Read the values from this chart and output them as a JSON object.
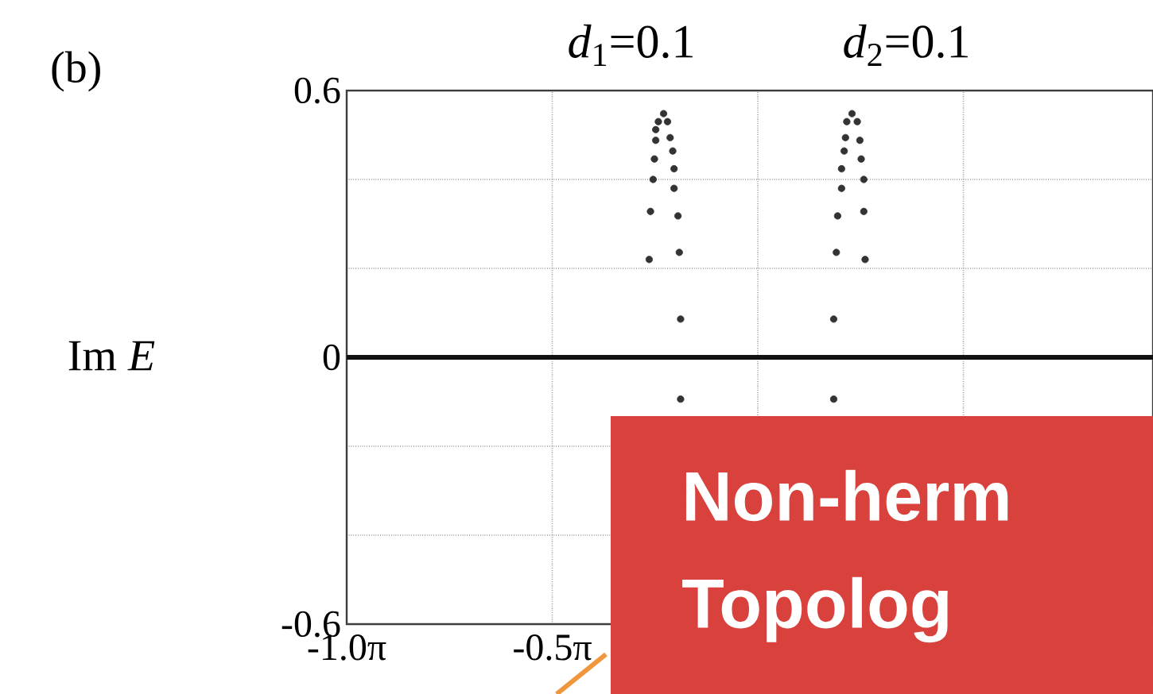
{
  "chart_data": {
    "type": "scatter",
    "title": "(b)",
    "ylabel": "Im *E*",
    "annotations": [
      "*d*$_{1}$=0.1",
      "*d*$_{2}$=0.1",
      "Non-herm",
      "Topolog"
    ],
    "series": [
      {
        "color": "#333333",
        "x": [
          -0.72,
          -0.76,
          -0.78,
          -0.78,
          -0.79,
          -0.8,
          -0.82,
          -0.83,
          -0.69,
          -0.67,
          -0.65,
          -0.64,
          -0.64,
          -0.61,
          -0.6,
          -0.59,
          -0.59,
          0.72,
          0.68,
          0.67,
          0.66,
          0.64,
          0.64,
          0.61,
          0.6,
          0.58,
          0.58,
          0.76,
          0.78,
          0.79,
          0.81,
          0.81,
          0.82
        ],
        "values": [
          0.548,
          0.53,
          0.512,
          0.488,
          0.446,
          0.4,
          0.328,
          0.22,
          0.53,
          0.494,
          0.464,
          0.424,
          0.38,
          0.318,
          0.236,
          0.086,
          -0.094,
          0.548,
          0.53,
          0.494,
          0.464,
          0.424,
          0.38,
          0.318,
          0.236,
          0.086,
          -0.094,
          0.53,
          0.488,
          0.446,
          0.4,
          0.328,
          0.22
        ]
      }
    ],
    "xlim": [
      -3.1416,
      3.02
    ],
    "ylim": [
      -0.6,
      0.6
    ],
    "xticks": [
      {
        "value": -3.1416,
        "label": "-1.0π"
      },
      {
        "value": -1.5708,
        "label": "-0.5π"
      },
      {
        "value": 0,
        "label": null
      },
      {
        "value": 1.5708,
        "label": null
      }
    ],
    "yticks": [
      -0.6,
      {
        "value": -0.4,
        "label": null
      },
      {
        "value": -0.2,
        "label": null
      },
      0,
      {
        "value": 0.2,
        "label": null
      },
      {
        "value": 0.4,
        "label": null
      },
      0.6
    ],
    "ref_lines": [
      {
        "axis": "y",
        "value": 0,
        "color": "#111111"
      }
    ],
    "grid": true,
    "marker": "circle"
  }
}
